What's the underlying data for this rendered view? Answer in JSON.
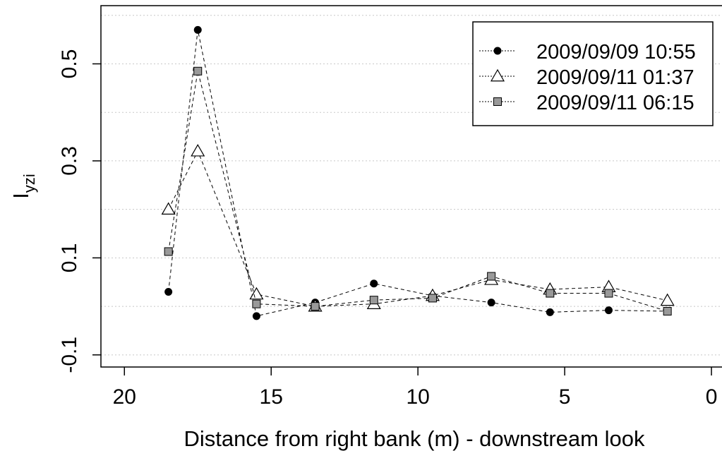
{
  "chart_data": {
    "type": "line",
    "xlabel": "Distance from right bank (m) - downstream look",
    "ylabel": {
      "main": "I",
      "sub": "yzi"
    },
    "xlim": [
      20.8,
      -0.6
    ],
    "ylim": [
      -0.125,
      0.62
    ],
    "x_ticks": [
      20,
      15,
      10,
      5,
      0
    ],
    "y_ticks": [
      -0.1,
      0.1,
      0.3,
      0.5
    ],
    "y_gridlines": [
      -0.1,
      0.0,
      0.1,
      0.2,
      0.3,
      0.4,
      0.5,
      0.6
    ],
    "grid": "horizontal dotted",
    "legend_position": "top-right",
    "x": [
      18.5,
      17.5,
      15.5,
      13.5,
      11.5,
      9.5,
      7.5,
      5.5,
      3.5,
      1.5
    ],
    "series": [
      {
        "name": "2009/09/09 10:55",
        "marker": "filled-circle",
        "color": "#000000",
        "values": [
          0.03,
          0.57,
          -0.02,
          0.008,
          0.047,
          0.022,
          0.008,
          -0.012,
          -0.008,
          -0.01
        ]
      },
      {
        "name": "2009/09/11 01:37",
        "marker": "open-triangle",
        "color": "#ffffff",
        "values": [
          0.2,
          0.32,
          0.025,
          0.0,
          0.005,
          0.022,
          0.055,
          0.035,
          0.04,
          0.012
        ]
      },
      {
        "name": "2009/09/11 06:15",
        "marker": "gray-square",
        "color": "#999999",
        "values": [
          0.113,
          0.485,
          0.005,
          0.0,
          0.013,
          0.017,
          0.062,
          0.027,
          0.027,
          -0.01
        ]
      }
    ]
  }
}
